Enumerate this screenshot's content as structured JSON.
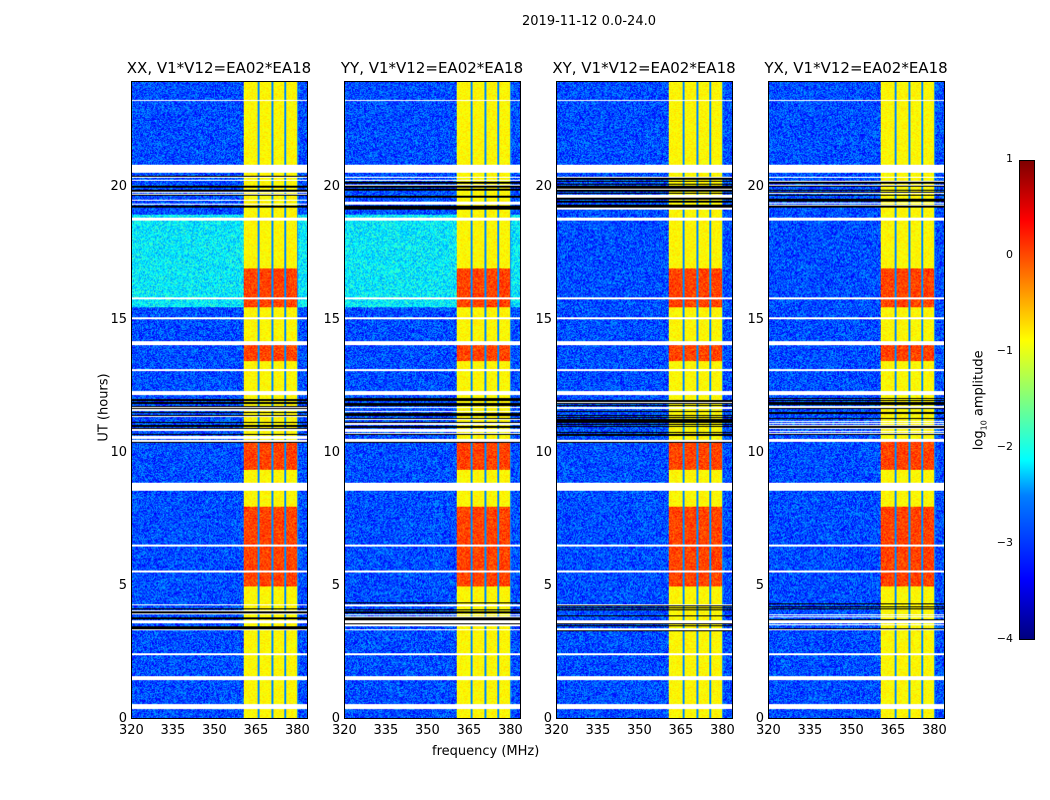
{
  "chart_data": {
    "type": "heatmap",
    "title": "2019-11-12 0.0-24.0",
    "xlabel": "frequency (MHz)",
    "ylabel": "UT (hours)",
    "xlim": [
      320,
      384
    ],
    "ylim": [
      0,
      24
    ],
    "xticks": [
      "320",
      "335",
      "350",
      "365",
      "380"
    ],
    "yticks": [
      "0",
      "5",
      "10",
      "15",
      "20"
    ],
    "panels": [
      {
        "title": "XX, V1*V12=EA02*EA18",
        "seed": 1
      },
      {
        "title": "YY, V1*V12=EA02*EA18",
        "seed": 2
      },
      {
        "title": "XY, V1*V12=EA02*EA18",
        "seed": 3
      },
      {
        "title": "YX, V1*V12=EA02*EA18",
        "seed": 4
      }
    ],
    "rfi_band_mhz": [
      360.5,
      380.5
    ],
    "band_edges_mhz": [
      360.5,
      366,
      371,
      376,
      380.5
    ],
    "background_log10": -3,
    "band_log10": -1,
    "bright_hours": [
      [
        15.5,
        17
      ],
      [
        5,
        8
      ],
      [
        9.4,
        10.5
      ],
      [
        13.5,
        14.2
      ]
    ],
    "flagged_hours": [
      [
        0.35,
        0.55
      ],
      [
        1.45,
        1.6
      ],
      [
        2.4,
        2.45
      ],
      [
        3.6,
        3.7
      ],
      [
        5.5,
        5.6
      ],
      [
        6.5,
        6.55
      ],
      [
        8.6,
        8.9
      ],
      [
        12.2,
        12.35
      ],
      [
        13.1,
        13.2
      ],
      [
        14.1,
        14.25
      ],
      [
        15.05,
        15.15
      ],
      [
        15.8,
        15.9
      ],
      [
        18.8,
        18.9
      ],
      [
        20.6,
        20.9
      ],
      [
        23.3,
        23.35
      ]
    ],
    "dense_flag_hours": [
      [
        19.2,
        20.5
      ],
      [
        10.4,
        12.1
      ],
      [
        3.3,
        4.4
      ]
    ],
    "colorbar": {
      "label": "log10 amplitude",
      "ticks": [
        "1",
        "0",
        "−1",
        "−2",
        "−3",
        "−4"
      ],
      "range": [
        -4,
        1
      ],
      "colormap": "jet"
    }
  }
}
